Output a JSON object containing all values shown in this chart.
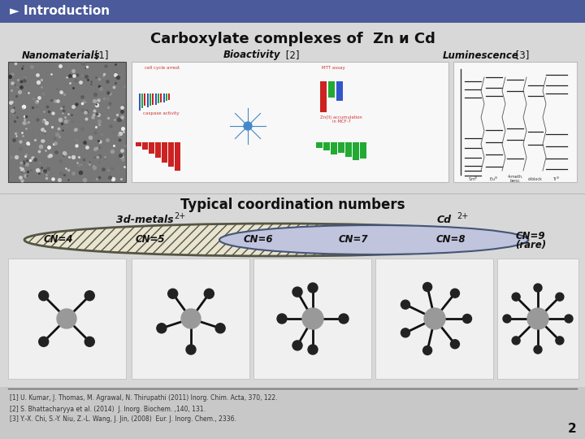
{
  "title_bar_color": "#4a5a9a",
  "title_bar_text": "► Introduction",
  "title_bar_text_color": "#ffffff",
  "slide_bg_color": "#d8d8d8",
  "main_title": "Carboxylate complexes of  Zn и Cd",
  "label_nanomaterials": "Nanomaterials",
  "label_nanomaterials_ref": " [1]",
  "label_bioactivity": "Bioactivity",
  "label_bioactivity_ref": " [2]",
  "label_luminescence": "Luminescence",
  "label_luminescence_ref": " [3]",
  "coord_title": "Typical coordination numbers",
  "coord_subtitle_3d": "3d-metals",
  "coord_subtitle_3d_sup": "2+",
  "coord_subtitle_cd": "Cd",
  "coord_subtitle_cd_sup": "2+",
  "cn_labels": [
    "CN=4",
    "CN=5",
    "CN=6",
    "CN=7",
    "CN=8",
    "CN=9\n(rare)"
  ],
  "ref1": "[1] U. Kumar, J. Thomas, M. Agrawal, N. Thirupathi (2011) Inorg. Chim. Acta, 370, 122.",
  "ref2": "[2] S. Bhattacharyya et al. (2014)  J. Inorg. Biochem. ,140, 131.",
  "ref3": "[3] Y.-X. Chi, S.-Y. Niu, Z.-L. Wang, J. Jin, (2008)  Eur. J. Inorg. Chem., 2336.",
  "page_num": "2"
}
